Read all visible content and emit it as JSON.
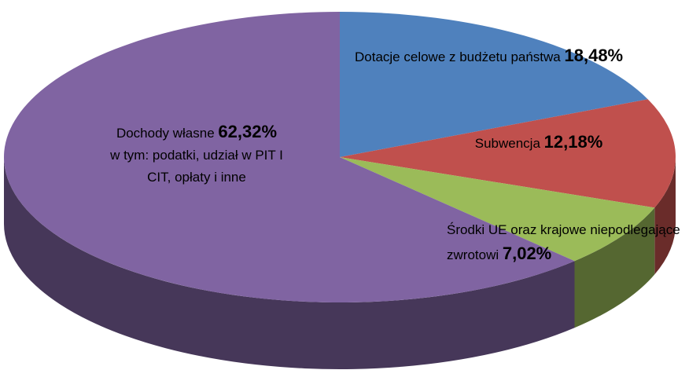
{
  "chart_data": {
    "type": "pie",
    "categories": [
      "Dotacje celowe z budżetu państwa",
      "Subwencja",
      "Środki UE oraz krajowe niepodlegające zwrotowi",
      "Dochody własne"
    ],
    "values": [
      18.48,
      12.18,
      7.02,
      62.32
    ],
    "value_labels": [
      "18,48%",
      "12,18%",
      "7,02%",
      "62,32%"
    ],
    "colors": [
      "#4f81bd",
      "#c0504d",
      "#9bbb59",
      "#8064a2"
    ],
    "annotation": "w tym: podatki, udział w PIT I CIT, opłaty i inne"
  }
}
